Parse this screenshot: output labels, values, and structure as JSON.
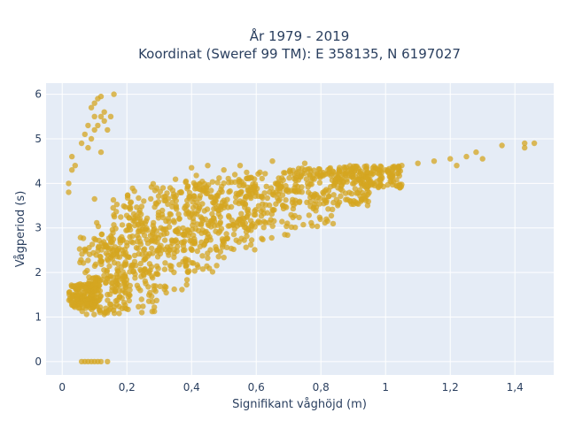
{
  "chart_data": {
    "type": "scatter",
    "title_line1": "År 1979 - 2019",
    "title_line2": "Koordinat (Sweref 99 TM): E 358135, N 6197027",
    "xlabel": "Signifikant våghöjd (m)",
    "ylabel": "Vågperiod (s)",
    "xlim": [
      -0.05,
      1.52
    ],
    "ylim": [
      -0.3,
      6.25
    ],
    "x_ticks": [
      0,
      0.2,
      0.4,
      0.6,
      0.8,
      1,
      1.2,
      1.4
    ],
    "x_tick_labels": [
      "0",
      "0,2",
      "0,4",
      "0,6",
      "0,8",
      "1",
      "1,2",
      "1,4"
    ],
    "y_ticks": [
      0,
      1,
      2,
      3,
      4,
      5,
      6
    ],
    "y_tick_labels": [
      "0",
      "1",
      "2",
      "3",
      "4",
      "5",
      "6"
    ],
    "grid": true,
    "colors": {
      "marker": "#d4a520",
      "plot_background": "#e5ecf6",
      "grid": "#ffffff",
      "text": "#2a3f5f"
    },
    "series": [
      {
        "bands": [
          {
            "x": [
              0.02,
              0.12
            ],
            "y": [
              1.2,
              1.75
            ]
          },
          {
            "x": [
              0.05,
              0.2
            ],
            "y": [
              1.05,
              2.8
            ]
          },
          {
            "x": [
              0.1,
              0.3
            ],
            "y": [
              1.1,
              3.3
            ]
          },
          {
            "x": [
              0.15,
              0.4
            ],
            "y": [
              1.5,
              3.8
            ]
          },
          {
            "x": [
              0.2,
              0.5
            ],
            "y": [
              2.0,
              4.0
            ]
          },
          {
            "x": [
              0.3,
              0.6
            ],
            "y": [
              2.5,
              4.1
            ]
          },
          {
            "x": [
              0.4,
              0.7
            ],
            "y": [
              2.7,
              4.2
            ]
          },
          {
            "x": [
              0.55,
              0.85
            ],
            "y": [
              3.0,
              4.3
            ]
          },
          {
            "x": [
              0.7,
              0.95
            ],
            "y": [
              3.5,
              4.35
            ]
          },
          {
            "x": [
              0.85,
              1.05
            ],
            "y": [
              3.9,
              4.4
            ]
          }
        ],
        "points": [
          [
            0.06,
            0
          ],
          [
            0.07,
            0
          ],
          [
            0.08,
            0
          ],
          [
            0.09,
            0
          ],
          [
            0.1,
            0
          ],
          [
            0.11,
            0
          ],
          [
            0.12,
            0
          ],
          [
            0.14,
            0
          ],
          [
            0.06,
            4.9
          ],
          [
            0.07,
            5.1
          ],
          [
            0.08,
            5.3
          ],
          [
            0.09,
            5.0
          ],
          [
            0.1,
            5.5
          ],
          [
            0.1,
            5.8
          ],
          [
            0.11,
            5.9
          ],
          [
            0.12,
            5.95
          ],
          [
            0.13,
            5.6
          ],
          [
            0.13,
            5.4
          ],
          [
            0.14,
            5.2
          ],
          [
            0.1,
            5.2
          ],
          [
            0.12,
            5.5
          ],
          [
            0.15,
            5.5
          ],
          [
            0.16,
            6.0
          ],
          [
            0.09,
            5.7
          ],
          [
            0.11,
            5.3
          ],
          [
            0.08,
            4.8
          ],
          [
            0.12,
            4.7
          ],
          [
            0.02,
            3.8
          ],
          [
            0.02,
            4.0
          ],
          [
            0.03,
            4.3
          ],
          [
            0.03,
            4.6
          ],
          [
            0.04,
            4.4
          ],
          [
            0.1,
            3.65
          ],
          [
            0.4,
            4.35
          ],
          [
            0.45,
            4.4
          ],
          [
            0.5,
            4.3
          ],
          [
            0.55,
            4.4
          ],
          [
            0.65,
            4.5
          ],
          [
            0.75,
            4.45
          ],
          [
            1.0,
            4.3
          ],
          [
            1.05,
            4.4
          ],
          [
            1.1,
            4.45
          ],
          [
            1.15,
            4.5
          ],
          [
            1.2,
            4.55
          ],
          [
            1.22,
            4.4
          ],
          [
            1.25,
            4.6
          ],
          [
            1.28,
            4.7
          ],
          [
            1.3,
            4.55
          ],
          [
            1.36,
            4.85
          ],
          [
            1.43,
            4.9
          ],
          [
            1.46,
            4.9
          ],
          [
            1.43,
            4.8
          ]
        ]
      }
    ]
  }
}
